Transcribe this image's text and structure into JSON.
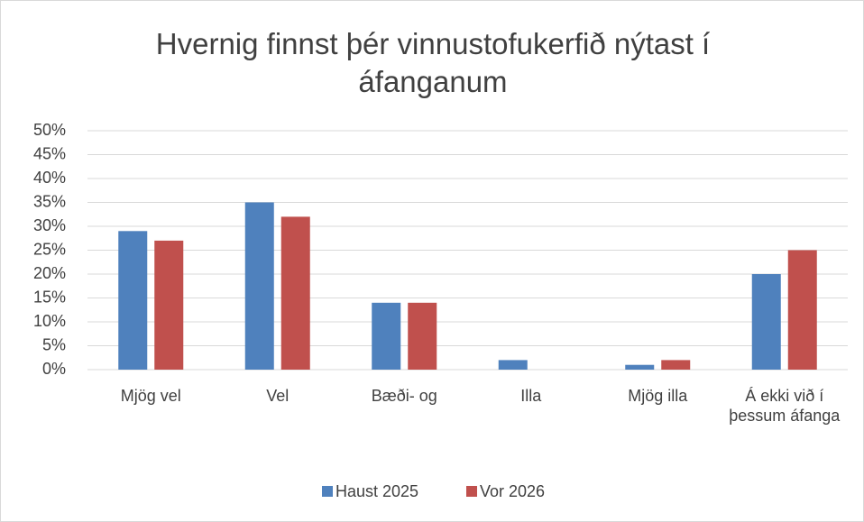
{
  "chart_data": {
    "type": "bar",
    "title": "Hvernig finnst þér vinnustofukerfið nýtast í áfanganum",
    "categories": [
      "Mjög vel",
      "Vel",
      "Bæði- og",
      "Illa",
      "Mjög illa",
      "Á ekki við í þessum áfanga"
    ],
    "series": [
      {
        "name": "Haust 2025",
        "color": "#4f81bd",
        "values": [
          29,
          35,
          14,
          2,
          1,
          20
        ]
      },
      {
        "name": "Vor 2026",
        "color": "#c0504d",
        "values": [
          27,
          32,
          14,
          0,
          2,
          25
        ]
      }
    ],
    "ylim": [
      0,
      50
    ],
    "yticks": [
      {
        "value": 0,
        "label": "0%"
      },
      {
        "value": 5,
        "label": "5%"
      },
      {
        "value": 10,
        "label": "10%"
      },
      {
        "value": 15,
        "label": "15%"
      },
      {
        "value": 20,
        "label": "20%"
      },
      {
        "value": 25,
        "label": "25%"
      },
      {
        "value": 30,
        "label": "30%"
      },
      {
        "value": 35,
        "label": "35%"
      },
      {
        "value": 40,
        "label": "40%"
      },
      {
        "value": 45,
        "label": "45%"
      },
      {
        "value": 50,
        "label": "50%"
      }
    ],
    "grid": true,
    "legend": "bottom"
  }
}
